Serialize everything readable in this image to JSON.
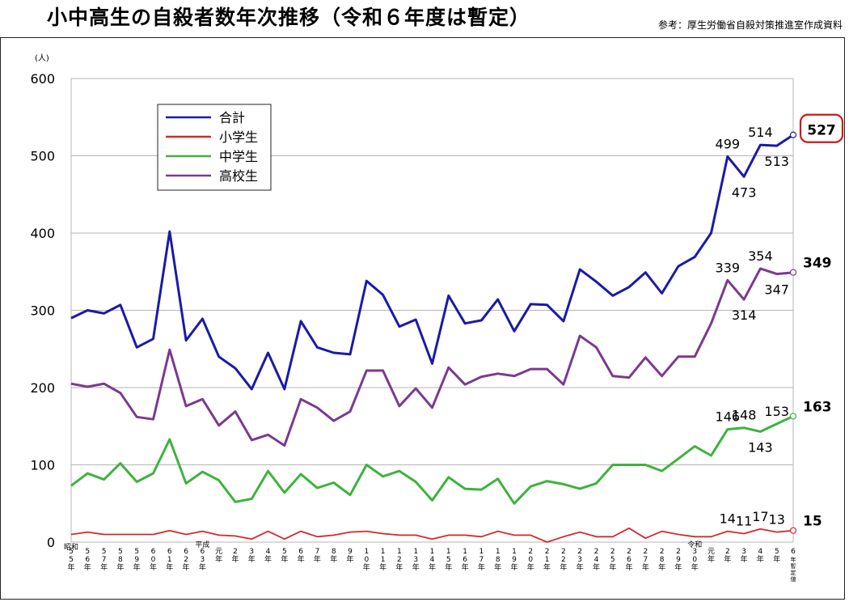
{
  "header": {
    "title": "小中高生の自殺者数年次推移（令和６年度は暫定）",
    "source": "参考：厚生労働省自殺対策推進室作成資料"
  },
  "chart_data": {
    "type": "line",
    "title": "小中高生の自殺者数年次推移（令和６年度は暫定）",
    "ylabel": "(人)",
    "ylim": [
      0,
      600
    ],
    "yticks": [
      0,
      100,
      200,
      300,
      400,
      500,
      600
    ],
    "grid": true,
    "legend_position": "top-left",
    "era_labels": [
      {
        "text": "昭和",
        "at": 0
      },
      {
        "text": "平成",
        "at": 8
      },
      {
        "text": "令和",
        "at": 38
      }
    ],
    "categories": [
      "55年",
      "56年",
      "57年",
      "58年",
      "59年",
      "60年",
      "61年",
      "62年",
      "63年",
      "元年",
      "2年",
      "3年",
      "4年",
      "5年",
      "6年",
      "7年",
      "8年",
      "9年",
      "10年",
      "11年",
      "12年",
      "13年",
      "14年",
      "15年",
      "16年",
      "17年",
      "18年",
      "19年",
      "20年",
      "21年",
      "22年",
      "23年",
      "24年",
      "25年",
      "26年",
      "27年",
      "28年",
      "29年",
      "30年",
      "元年",
      "2年",
      "3年",
      "4年",
      "5年",
      "6年(暫定値)"
    ],
    "series": [
      {
        "name": "合計",
        "color": "#1a1aa8",
        "values": [
          290,
          300,
          296,
          307,
          252,
          263,
          402,
          261,
          289,
          240,
          225,
          198,
          245,
          198,
          286,
          252,
          245,
          243,
          338,
          320,
          279,
          288,
          231,
          319,
          283,
          287,
          314,
          273,
          308,
          307,
          286,
          353,
          337,
          319,
          330,
          349,
          322,
          357,
          369,
          400,
          499,
          473,
          514,
          513,
          527
        ],
        "labels": [
          {
            "i": 40,
            "text": "499",
            "pos": "above"
          },
          {
            "i": 41,
            "text": "473",
            "pos": "below"
          },
          {
            "i": 42,
            "text": "514",
            "pos": "above"
          },
          {
            "i": 43,
            "text": "513",
            "pos": "below"
          }
        ],
        "end_label": "527",
        "end_label_boxed": true
      },
      {
        "name": "小学生",
        "color": "#d42a2a",
        "values": [
          10,
          13,
          10,
          10,
          10,
          10,
          15,
          10,
          14,
          9,
          8,
          4,
          14,
          4,
          14,
          7,
          9,
          13,
          14,
          11,
          9,
          9,
          4,
          9,
          9,
          7,
          14,
          9,
          9,
          0,
          7,
          13,
          7,
          7,
          18,
          5,
          14,
          10,
          7,
          7,
          14,
          11,
          17,
          13,
          15
        ],
        "labels": [
          {
            "i": 40,
            "text": "14",
            "pos": "above"
          },
          {
            "i": 41,
            "text": "11",
            "pos": "above"
          },
          {
            "i": 42,
            "text": "17",
            "pos": "above"
          },
          {
            "i": 43,
            "text": "13",
            "pos": "above"
          }
        ],
        "end_label": "15"
      },
      {
        "name": "中学生",
        "color": "#3db33d",
        "values": [
          73,
          89,
          81,
          102,
          78,
          89,
          133,
          76,
          91,
          80,
          52,
          56,
          92,
          64,
          88,
          70,
          77,
          61,
          100,
          85,
          92,
          78,
          54,
          84,
          69,
          68,
          82,
          50,
          72,
          79,
          75,
          69,
          76,
          100,
          100,
          100,
          92,
          108,
          124,
          112,
          146,
          148,
          143,
          153,
          163
        ],
        "labels": [
          {
            "i": 40,
            "text": "146",
            "pos": "above"
          },
          {
            "i": 41,
            "text": "148",
            "pos": "above"
          },
          {
            "i": 42,
            "text": "143",
            "pos": "below"
          },
          {
            "i": 43,
            "text": "153",
            "pos": "above"
          }
        ],
        "end_label": "163"
      },
      {
        "name": "高校生",
        "color": "#7b3a8e",
        "values": [
          205,
          201,
          205,
          193,
          162,
          159,
          249,
          176,
          185,
          151,
          169,
          132,
          139,
          125,
          185,
          174,
          157,
          169,
          222,
          222,
          176,
          199,
          174,
          226,
          204,
          214,
          218,
          215,
          224,
          224,
          204,
          267,
          252,
          215,
          213,
          239,
          215,
          240,
          240,
          283,
          339,
          314,
          354,
          347,
          349
        ],
        "labels": [
          {
            "i": 40,
            "text": "339",
            "pos": "above"
          },
          {
            "i": 41,
            "text": "314",
            "pos": "below"
          },
          {
            "i": 42,
            "text": "354",
            "pos": "above"
          },
          {
            "i": 43,
            "text": "347",
            "pos": "below"
          }
        ],
        "end_label": "349"
      }
    ]
  }
}
